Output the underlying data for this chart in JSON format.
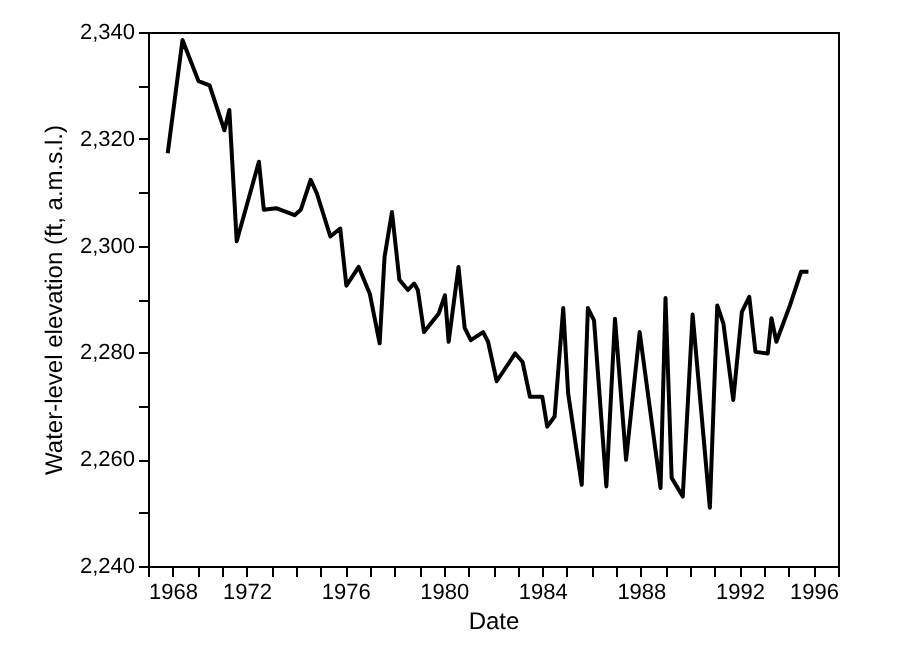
{
  "chart_data": {
    "type": "line",
    "xlabel": "Date",
    "ylabel": "Water-level elevation (ft, a.m.s.l.)",
    "series": [
      {
        "color": "#000000",
        "x": [
          1968.8,
          1969.4,
          1970.05,
          1970.5,
          1971.1,
          1971.3,
          1971.6,
          1972.5,
          1972.7,
          1973.2,
          1973.95,
          1974.2,
          1974.6,
          1974.85,
          1975.4,
          1975.8,
          1976.05,
          1976.55,
          1977.0,
          1977.4,
          1977.6,
          1977.9,
          1978.2,
          1978.55,
          1978.8,
          1978.95,
          1979.2,
          1979.8,
          1980.05,
          1980.2,
          1980.6,
          1980.85,
          1981.1,
          1981.6,
          1981.8,
          1982.15,
          1982.9,
          1983.2,
          1983.5,
          1984.0,
          1984.2,
          1984.5,
          1984.85,
          1985.05,
          1985.6,
          1985.85,
          1986.1,
          1986.6,
          1986.95,
          1987.4,
          1987.95,
          1988.8,
          1989.0,
          1989.25,
          1989.7,
          1990.1,
          1990.8,
          1991.1,
          1991.35,
          1991.75,
          1992.1,
          1992.4,
          1992.65,
          1993.15,
          1993.3,
          1993.5,
          1994.05,
          1994.5,
          1994.8
        ],
        "values": [
          2317.3,
          2338.5,
          2330.8,
          2330,
          2321.6,
          2325.4,
          2300.8,
          2315.7,
          2306.7,
          2307,
          2305.7,
          2306.7,
          2312.3,
          2309.8,
          2301.7,
          2303.2,
          2292.5,
          2296,
          2291,
          2281.7,
          2297.9,
          2306.3,
          2293.6,
          2291.7,
          2292.9,
          2291.7,
          2283.8,
          2287.3,
          2290.7,
          2282,
          2296,
          2284.6,
          2282.3,
          2283.8,
          2282,
          2274.6,
          2279.8,
          2278.2,
          2271.7,
          2271.7,
          2266.1,
          2268,
          2288.3,
          2272.3,
          2255.2,
          2288.3,
          2286,
          2254.9,
          2286.3,
          2259.9,
          2283.8,
          2254.6,
          2290.2,
          2256.5,
          2253,
          2287.1,
          2250.9,
          2288.8,
          2285.4,
          2271.1,
          2287.6,
          2290.4,
          2280.1,
          2279.8,
          2286.4,
          2282,
          2288.8,
          2295.1,
          2295.1
        ]
      }
    ],
    "xlim": [
      1968,
      1996
    ],
    "xticks": [
      1968,
      {
        "value": 1969,
        "label": null
      },
      {
        "value": 1970,
        "label": null
      },
      {
        "value": 1971,
        "label": null
      },
      1972,
      {
        "value": 1973,
        "label": null
      },
      {
        "value": 1974,
        "label": null
      },
      {
        "value": 1975,
        "label": null
      },
      1976,
      {
        "value": 1977,
        "label": null
      },
      {
        "value": 1978,
        "label": null
      },
      {
        "value": 1979,
        "label": null
      },
      1980,
      {
        "value": 1981,
        "label": null
      },
      {
        "value": 1982,
        "label": null
      },
      {
        "value": 1983,
        "label": null
      },
      1984,
      {
        "value": 1985,
        "label": null
      },
      {
        "value": 1986,
        "label": null
      },
      {
        "value": 1987,
        "label": null
      },
      1988,
      {
        "value": 1989,
        "label": null
      },
      {
        "value": 1990,
        "label": null
      },
      {
        "value": 1991,
        "label": null
      },
      1992,
      {
        "value": 1993,
        "label": null
      },
      {
        "value": 1994,
        "label": null
      },
      {
        "value": 1995,
        "label": null
      },
      1996
    ],
    "ylim": [
      2240,
      2340
    ],
    "yticks": [
      {
        "value": 2240,
        "label": "2,240"
      },
      {
        "value": 2250,
        "label": null
      },
      {
        "value": 2260,
        "label": "2,260"
      },
      {
        "value": 2270,
        "label": null
      },
      {
        "value": 2280,
        "label": "2,280"
      },
      {
        "value": 2290,
        "label": null
      },
      {
        "value": 2300,
        "label": "2,300"
      },
      {
        "value": 2310,
        "label": null
      },
      {
        "value": 2320,
        "label": "2,320"
      },
      {
        "value": 2330,
        "label": null
      },
      {
        "value": 2340,
        "label": "2,340"
      }
    ],
    "grid": false,
    "marker": "none",
    "line_style": "solid"
  }
}
